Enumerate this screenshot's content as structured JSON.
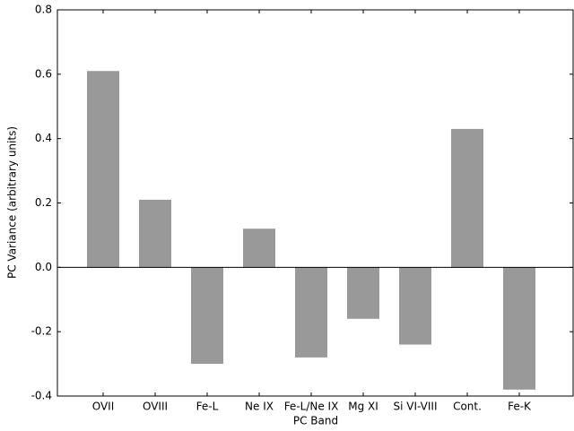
{
  "chart_data": {
    "type": "bar",
    "categories": [
      "OVII",
      "OVIII",
      "Fe-L",
      "Ne IX",
      "Fe-L/Ne IX",
      "Mg XI",
      "Si VI-VIII",
      "Cont.",
      "Fe-K"
    ],
    "values": [
      0.61,
      0.21,
      -0.3,
      0.12,
      -0.28,
      -0.16,
      -0.24,
      0.43,
      -0.38
    ],
    "color": "#999999",
    "xlabel": "PC Band",
    "ylabel": "PC Variance (arbitrary units)",
    "ylim": [
      -0.4,
      0.8
    ],
    "yticks": [
      -0.4,
      -0.2,
      {
        "value": 0,
        "label": "0.0"
      },
      0.2,
      0.4,
      0.6,
      0.8
    ]
  }
}
